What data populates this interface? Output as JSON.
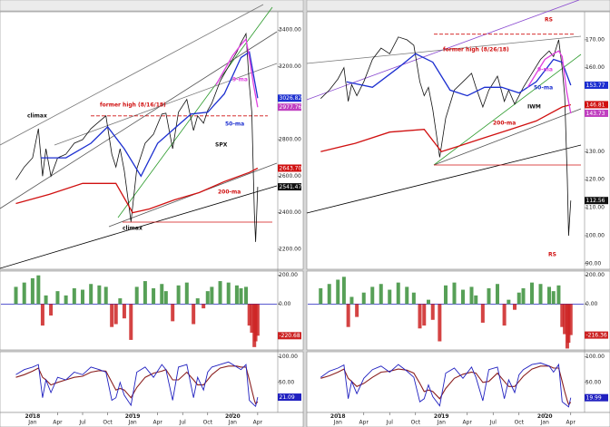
{
  "chart_data": [
    {
      "type": "stock",
      "xlim": [
        -1.8,
        31.3
      ],
      "x": [
        0,
        1,
        2,
        2.7,
        3.2,
        3.6,
        4.2,
        5,
        6,
        7,
        8,
        9,
        10,
        10.8,
        11.5,
        12,
        12.5,
        13,
        13.8,
        14.5,
        15.5,
        16.5,
        17.5,
        18,
        18.8,
        19.5,
        20.5,
        21.3,
        21.8,
        22.5,
        23,
        23.5,
        24.5,
        25.5,
        26.5,
        27,
        27.6,
        28,
        28.3,
        28.6,
        28.75,
        29
      ],
      "xticks": [
        {
          "value": 2,
          "label": "Jan"
        },
        {
          "value": 5,
          "label": "Apr"
        },
        {
          "value": 8,
          "label": "Jul"
        },
        {
          "value": 11,
          "label": "Oct"
        },
        {
          "value": 14,
          "label": "Jan"
        },
        {
          "value": 17,
          "label": "Apr"
        },
        {
          "value": 20,
          "label": "Jul"
        },
        {
          "value": 23,
          "label": "Oct"
        },
        {
          "value": 26,
          "label": "Jan"
        },
        {
          "value": 29,
          "label": "Apr"
        }
      ],
      "years": [
        {
          "value": 2,
          "label": "2018"
        },
        {
          "value": 14,
          "label": "2019"
        },
        {
          "value": 26,
          "label": "2020"
        }
      ],
      "price": {
        "ylim": [
          2090,
          3500
        ],
        "yticks": [
          {
            "value": 2200,
            "label": "2200.00"
          },
          {
            "value": 2400,
            "label": "2400.00"
          },
          {
            "value": 2600,
            "label": "2600.00"
          },
          {
            "value": 2800,
            "label": "2800.00"
          },
          {
            "value": 3200,
            "label": "3200.00"
          },
          {
            "value": 3400,
            "label": "3400.00"
          }
        ],
        "series": [
          {
            "name": "SPX",
            "color": "#111111",
            "values": [
              2580,
              2650,
              2700,
              2860,
              2600,
              2750,
              2600,
              2700,
              2720,
              2780,
              2800,
              2860,
              2900,
              2930,
              2720,
              2650,
              2750,
              2630,
              2350,
              2640,
              2780,
              2830,
              2940,
              2945,
              2750,
              2950,
              3020,
              2850,
              2930,
              2890,
              2960,
              3000,
              3120,
              3200,
              3280,
              3330,
              3380,
              3100,
              2950,
              2400,
              2240,
              2541.47
            ]
          },
          {
            "name": "50-ma",
            "color": "#1c2fd0",
            "x": [
              3,
              6,
              9,
              11,
              13,
              15,
              17,
              19,
              21,
              23,
              25,
              27,
              28,
              29
            ],
            "values": [
              2700,
              2700,
              2780,
              2870,
              2750,
              2600,
              2780,
              2860,
              2940,
              2950,
              3050,
              3250,
              3280,
              3026.82
            ]
          },
          {
            "name": "200-ma",
            "color": "#d01010",
            "x": [
              0,
              4,
              8,
              12,
              14,
              16,
              19,
              22,
              25,
              28,
              29
            ],
            "values": [
              2450,
              2500,
              2560,
              2560,
              2400,
              2420,
              2470,
              2510,
              2570,
              2620,
              2643.7
            ]
          },
          {
            "name": "9-ma",
            "color": "#e040e0",
            "x": [
              24,
              25,
              26,
              27,
              27.6,
              28,
              28.5,
              29
            ],
            "values": [
              3100,
              3180,
              3260,
              3320,
              3350,
              3250,
              3100,
              2977.76
            ]
          }
        ],
        "tags": [
          {
            "value": 3026.82,
            "label": "3026.82",
            "color": "#1c2fd0"
          },
          {
            "value": 2977.76,
            "label": "2977.76",
            "color": "#c040c0"
          },
          {
            "value": 2643.7,
            "label": "2643.70",
            "color": "#d01010"
          },
          {
            "value": 2541.47,
            "label": "2541.47",
            "color": "#111111"
          }
        ],
        "former_high": {
          "label": "former high (8/16/18)",
          "value": 2930,
          "color": "#d01010"
        },
        "annotations": [
          {
            "text": "climax",
            "color": "#111111"
          },
          {
            "text": "climax",
            "color": "#111111"
          }
        ]
      },
      "cci": {
        "ylim": [
          -320,
          230
        ],
        "yticks": [
          {
            "value": 200,
            "label": "200.00"
          },
          {
            "value": 0,
            "label": "0.00"
          }
        ],
        "up_color": "#3a8f3a",
        "down_color": "#cc2222",
        "values": [
          120,
          150,
          180,
          200,
          -150,
          60,
          -80,
          90,
          60,
          110,
          100,
          140,
          130,
          120,
          -160,
          -140,
          40,
          -100,
          -250,
          120,
          160,
          110,
          140,
          90,
          -120,
          130,
          150,
          -140,
          40,
          -30,
          90,
          120,
          160,
          150,
          130,
          110,
          120,
          -150,
          -200,
          -300,
          -260,
          -220.68
        ],
        "tag": {
          "value": -220.68,
          "label": "-220.68",
          "color": "#cc2222"
        }
      },
      "rsi": {
        "ylim": [
          -9,
          110
        ],
        "yticks": [
          {
            "value": 100,
            "label": "100.00"
          },
          {
            "value": 50,
            "label": "50.00"
          }
        ],
        "color": "#2020c0",
        "signal_color": "#8b2020",
        "values": [
          65,
          75,
          80,
          85,
          20,
          55,
          30,
          60,
          55,
          70,
          65,
          80,
          75,
          70,
          15,
          20,
          50,
          25,
          5,
          70,
          80,
          60,
          85,
          75,
          15,
          80,
          85,
          20,
          60,
          35,
          70,
          80,
          85,
          90,
          80,
          75,
          85,
          15,
          10,
          5,
          3,
          21.09
        ],
        "signal": [
          60,
          65,
          72,
          78,
          60,
          55,
          45,
          50,
          55,
          60,
          62,
          70,
          73,
          72,
          50,
          35,
          38,
          35,
          20,
          40,
          60,
          68,
          72,
          75,
          55,
          55,
          70,
          55,
          45,
          45,
          55,
          65,
          78,
          82,
          82,
          80,
          80,
          55,
          35,
          15,
          8,
          12
        ],
        "tag": {
          "value": 21.09,
          "label": "21.09",
          "color": "#2020c0"
        }
      }
    },
    {
      "type": "stock",
      "xlim": [
        -1.5,
        30.5
      ],
      "x": [
        0,
        1,
        2,
        2.7,
        3.2,
        3.6,
        4.2,
        5,
        6,
        7,
        8,
        9,
        10,
        10.8,
        11.5,
        12,
        12.5,
        13,
        13.8,
        14.5,
        15.5,
        16.5,
        17.5,
        18,
        18.8,
        19.5,
        20.5,
        21.3,
        21.8,
        22.5,
        23,
        23.5,
        24.5,
        25.5,
        26.5,
        27,
        27.6,
        28,
        28.3,
        28.6,
        28.75,
        29
      ],
      "xticks": [
        {
          "value": 2,
          "label": "Jan"
        },
        {
          "value": 5,
          "label": "Apr"
        },
        {
          "value": 8,
          "label": "Jul"
        },
        {
          "value": 11,
          "label": "Oct"
        },
        {
          "value": 14,
          "label": "Jan"
        },
        {
          "value": 17,
          "label": "Apr"
        },
        {
          "value": 20,
          "label": "Jul"
        },
        {
          "value": 23,
          "label": "Oct"
        },
        {
          "value": 26,
          "label": "Jan"
        },
        {
          "value": 29,
          "label": "Apr"
        }
      ],
      "years": [
        {
          "value": 2,
          "label": "2018"
        },
        {
          "value": 14,
          "label": "2019"
        },
        {
          "value": 26,
          "label": "2020"
        }
      ],
      "price": {
        "ylim": [
          88,
          180
        ],
        "yticks": [
          {
            "value": 90,
            "label": "90.00"
          },
          {
            "value": 100,
            "label": "100.00"
          },
          {
            "value": 110,
            "label": "110.00"
          },
          {
            "value": 120,
            "label": "120.00"
          },
          {
            "value": 130,
            "label": "130.00"
          },
          {
            "value": 160,
            "label": "160.00"
          },
          {
            "value": 170,
            "label": "170.00"
          }
        ],
        "series": [
          {
            "name": "IWM",
            "color": "#111111",
            "values": [
              149,
              152,
              156,
              160,
              148,
              154,
              150,
              155,
              163,
              167,
              165,
              171,
              170,
              168,
              155,
              150,
              153,
              145,
              128,
              142,
              152,
              155,
              158,
              153,
              146,
              152,
              157,
              148,
              152,
              147,
              150,
              153,
              158,
              163,
              166,
              164,
              170,
              160,
              150,
              120,
              100,
              112.56
            ]
          },
          {
            "name": "50-ma",
            "color": "#1c2fd0",
            "x": [
              3,
              6,
              9,
              11,
              13,
              15,
              17,
              19,
              21,
              23,
              25,
              27,
              28,
              29
            ],
            "values": [
              155,
              153,
              160,
              165,
              162,
              152,
              150,
              153,
              153,
              151,
              155,
              163,
              162,
              153.77
            ]
          },
          {
            "name": "200-ma",
            "color": "#d01010",
            "x": [
              0,
              4,
              8,
              12,
              14,
              16,
              19,
              22,
              25,
              28,
              29
            ],
            "values": [
              130,
              133,
              137,
              138,
              130,
              132,
              135,
              138,
              141,
              146,
              146.81
            ]
          },
          {
            "name": "9-ma",
            "color": "#e040e0",
            "x": [
              24,
              25,
              26,
              27,
              27.6,
              28,
              28.5,
              29
            ],
            "values": [
              153,
              158,
              163,
              165,
              166,
              164,
              152,
              143.73
            ]
          }
        ],
        "tags": [
          {
            "value": 153.77,
            "label": "153.77",
            "color": "#1c2fd0"
          },
          {
            "value": 146.81,
            "label": "146.81",
            "color": "#d01010"
          },
          {
            "value": 143.73,
            "label": "143.73",
            "color": "#c040c0"
          },
          {
            "value": 112.56,
            "label": "112.56",
            "color": "#111111"
          }
        ],
        "former_high": {
          "label": "former high (8/26/18)",
          "value": 172,
          "color": "#d01010"
        },
        "annotations": [
          {
            "text": "RS",
            "color": "#d01010"
          },
          {
            "text": "RS",
            "color": "#d01010"
          }
        ]
      },
      "cci": {
        "ylim": [
          -320,
          230
        ],
        "yticks": [
          {
            "value": 200,
            "label": "200.00"
          },
          {
            "value": 0,
            "label": "0.00"
          }
        ],
        "up_color": "#3a8f3a",
        "down_color": "#cc2222",
        "values": [
          110,
          140,
          170,
          190,
          -160,
          50,
          -90,
          80,
          120,
          140,
          100,
          150,
          120,
          80,
          -170,
          -150,
          30,
          -110,
          -260,
          130,
          150,
          100,
          120,
          60,
          -130,
          110,
          140,
          -150,
          30,
          -40,
          80,
          110,
          150,
          140,
          120,
          90,
          130,
          -160,
          -210,
          -310,
          -270,
          -216.36
        ],
        "tag": {
          "value": -216.36,
          "label": "-216.36",
          "color": "#cc2222"
        }
      },
      "rsi": {
        "ylim": [
          -9,
          110
        ],
        "yticks": [
          {
            "value": 100,
            "label": "100.00"
          },
          {
            "value": 50,
            "label": "50.00"
          }
        ],
        "color": "#2020c0",
        "signal_color": "#8b2020",
        "values": [
          60,
          72,
          78,
          84,
          18,
          52,
          28,
          58,
          75,
          82,
          70,
          85,
          72,
          60,
          12,
          18,
          45,
          22,
          4,
          68,
          78,
          58,
          80,
          60,
          14,
          75,
          80,
          18,
          55,
          30,
          65,
          75,
          85,
          88,
          82,
          70,
          85,
          12,
          8,
          4,
          2,
          19.99
        ],
        "signal": [
          58,
          63,
          70,
          76,
          58,
          52,
          42,
          48,
          60,
          70,
          72,
          76,
          74,
          68,
          48,
          32,
          35,
          32,
          18,
          38,
          58,
          66,
          70,
          68,
          50,
          52,
          68,
          52,
          42,
          42,
          52,
          62,
          76,
          82,
          82,
          78,
          78,
          52,
          32,
          14,
          7,
          11
        ],
        "tag": {
          "value": 19.99,
          "label": "19.99",
          "color": "#2020c0"
        }
      }
    }
  ]
}
